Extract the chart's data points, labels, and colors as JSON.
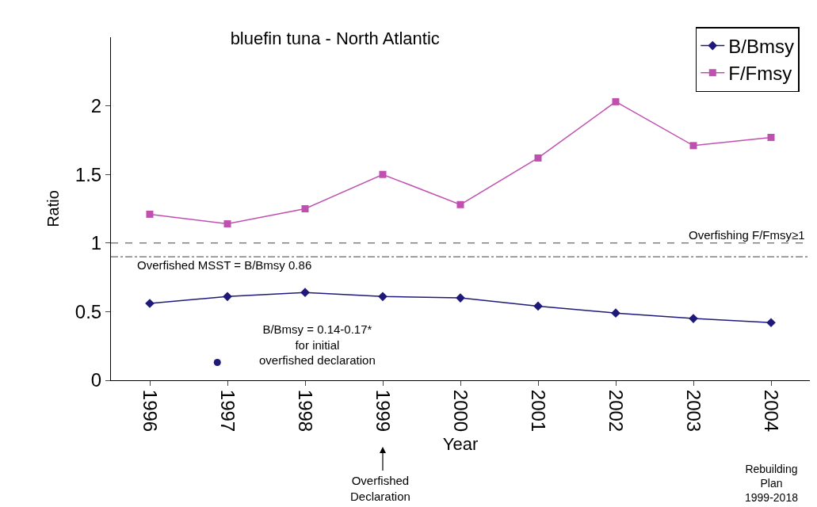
{
  "chart_data": {
    "type": "line",
    "title": "bluefin tuna - North Atlantic",
    "xlabel": "Year",
    "ylabel": "Ratio",
    "x": [
      1996,
      1997,
      1998,
      1999,
      2000,
      2001,
      2002,
      2003,
      2004
    ],
    "xlim": [
      1995.5,
      2004.5
    ],
    "xticks": [
      1996,
      1997,
      1998,
      1999,
      2000,
      2001,
      2002,
      2003,
      2004
    ],
    "ylim": [
      0,
      2.5
    ],
    "yticks": [
      0,
      0.5,
      1,
      1.5,
      2
    ],
    "series": [
      {
        "name": "B/Bmsy",
        "color": "#1f1a7a",
        "marker": "diamond",
        "values": [
          0.56,
          0.61,
          0.64,
          0.61,
          0.6,
          0.54,
          0.49,
          0.45,
          0.42
        ]
      },
      {
        "name": "F/Fmsy",
        "color": "#c050b0",
        "marker": "square",
        "values": [
          1.21,
          1.14,
          1.25,
          1.5,
          1.28,
          1.62,
          2.03,
          1.71,
          1.77
        ]
      },
      {
        "type": "scatter",
        "color": "#1f1a7a",
        "marker": "circle",
        "x": [
          1996.87
        ],
        "values": [
          0.13
        ]
      }
    ],
    "ref_lines": [
      {
        "axis": "y",
        "value": 1,
        "label": "Overfishing F/Fmsy≥1",
        "color": "#404040",
        "line_style": "dashed"
      },
      {
        "axis": "y",
        "value": 0.9,
        "label": "Overfished MSST = B/Bmsy 0.86",
        "color": "#404040",
        "line_style": "dashdot"
      }
    ],
    "annotations": [
      "B/Bmsy = 0.14-0.17*\nfor initial\noverfished declaration",
      "Overfished\nDeclaration",
      "Rebuilding\nPlan\n1999-2018"
    ],
    "legend": "top right",
    "grid": false
  }
}
